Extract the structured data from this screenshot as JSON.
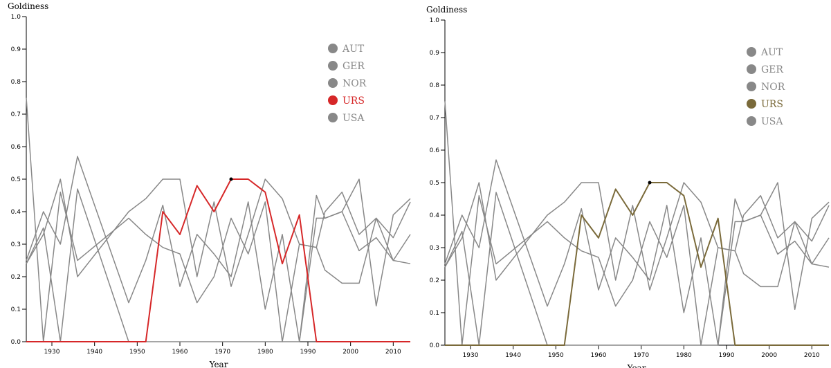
{
  "chart_data": [
    {
      "type": "line",
      "title": "",
      "ylabel": "Goldiness",
      "xlabel": "Year",
      "xlim": [
        1924,
        2014
      ],
      "ylim": [
        0,
        1
      ],
      "grid": false,
      "legend_position": "top-right",
      "x_ticks": [
        1930,
        1940,
        1950,
        1960,
        1970,
        1980,
        1990,
        2000,
        2010
      ],
      "y_ticks": [
        0.0,
        0.1,
        0.2,
        0.3,
        0.4,
        0.5,
        0.6,
        0.7,
        0.8,
        0.9,
        1.0
      ],
      "x_tick_labels": [
        "1930",
        "1940",
        "1950",
        "1960",
        "1970",
        "1980",
        "1990",
        "2000",
        "2010"
      ],
      "y_tick_labels": [
        "0.0",
        "0.1",
        "0.2",
        "0.3",
        "0.4",
        "0.5",
        "0.6",
        "0.7",
        "0.8",
        "0.9",
        "1.0"
      ],
      "highlight_marker": {
        "x": 1972,
        "y": 0.5
      },
      "series": [
        {
          "name": "AUT",
          "color": "#888888",
          "highlighted": false,
          "x": [
            1924,
            1928,
            1932,
            1936,
            1948,
            1952,
            1956,
            1960,
            1964,
            1968,
            1972,
            1976,
            1980,
            1984,
            1988,
            1992,
            1994,
            1998,
            2002,
            2006,
            2010,
            2014
          ],
          "y": [
            0.25,
            0.4,
            0.3,
            0.57,
            0.12,
            0.25,
            0.42,
            0.17,
            0.33,
            0.27,
            0.2,
            0.43,
            0.1,
            0.33,
            0.0,
            0.45,
            0.38,
            0.4,
            0.28,
            0.32,
            0.25,
            0.24
          ]
        },
        {
          "name": "GER",
          "color": "#888888",
          "highlighted": false,
          "x": [
            1924,
            1928,
            1932,
            1936,
            1948,
            1952,
            1956,
            1960,
            1964,
            1968,
            1972,
            1976,
            1980,
            1984,
            1988,
            1992,
            1994,
            1998,
            2002,
            2006,
            2010,
            2014
          ],
          "y": [
            0.75,
            0.0,
            0.46,
            0.25,
            0.38,
            0.33,
            0.29,
            0.27,
            0.12,
            0.2,
            0.38,
            0.27,
            0.43,
            0.0,
            0.3,
            0.29,
            0.22,
            0.18,
            0.18,
            0.38,
            0.32,
            0.43
          ]
        },
        {
          "name": "NOR",
          "color": "#888888",
          "highlighted": false,
          "x": [
            1924,
            1928,
            1932,
            1936,
            1948,
            1952,
            1956,
            1960,
            1964,
            1968,
            1972,
            1976,
            1980,
            1984,
            1988,
            1992,
            1994,
            1998,
            2002,
            2006,
            2010,
            2014
          ],
          "y": [
            0.24,
            0.33,
            0.5,
            0.2,
            0.4,
            0.44,
            0.5,
            0.5,
            0.2,
            0.43,
            0.17,
            0.33,
            0.5,
            0.44,
            0.3,
            0.29,
            0.4,
            0.46,
            0.33,
            0.38,
            0.25,
            0.33
          ]
        },
        {
          "name": "URS",
          "color": "#d62728",
          "highlighted": true,
          "x": [
            1924,
            1928,
            1932,
            1936,
            1948,
            1952,
            1956,
            1960,
            1964,
            1968,
            1972,
            1976,
            1980,
            1984,
            1988,
            1992,
            1994,
            1998,
            2002,
            2006,
            2010,
            2014
          ],
          "y": [
            0,
            0,
            0,
            0,
            0,
            0,
            0.4,
            0.33,
            0.48,
            0.4,
            0.5,
            0.5,
            0.46,
            0.24,
            0.39,
            0,
            0,
            0,
            0,
            0,
            0,
            0
          ]
        },
        {
          "name": "USA",
          "color": "#888888",
          "highlighted": false,
          "x": [
            1924,
            1928,
            1932,
            1936,
            1948,
            1952,
            1956,
            1960,
            1964,
            1968,
            1972,
            1976,
            1980,
            1984,
            1988,
            1992,
            1994,
            1998,
            2002,
            2006,
            2010,
            2014
          ],
          "y": [
            0.24,
            0.35,
            0.0,
            0.47,
            0.0,
            0.0,
            0.0,
            0.0,
            0.0,
            0.0,
            0.0,
            0.0,
            0.0,
            0.0,
            0.0,
            0.38,
            0.38,
            0.4,
            0.5,
            0.11,
            0.39,
            0.44
          ]
        }
      ]
    },
    {
      "type": "line",
      "title": "",
      "ylabel": "Goldiness",
      "xlabel": "Year",
      "xlim": [
        1924,
        2014
      ],
      "ylim": [
        0,
        1
      ],
      "grid": false,
      "legend_position": "top-right",
      "x_ticks": [
        1930,
        1940,
        1950,
        1960,
        1970,
        1980,
        1990,
        2000,
        2010
      ],
      "y_ticks": [
        0.0,
        0.1,
        0.2,
        0.3,
        0.4,
        0.5,
        0.6,
        0.7,
        0.8,
        0.9,
        1.0
      ],
      "x_tick_labels": [
        "1930",
        "1940",
        "1950",
        "1960",
        "1970",
        "1980",
        "1990",
        "2000",
        "2010"
      ],
      "y_tick_labels": [
        "0.0",
        "0.1",
        "0.2",
        "0.3",
        "0.4",
        "0.5",
        "0.6",
        "0.7",
        "0.8",
        "0.9",
        "1.0"
      ],
      "highlight_marker": {
        "x": 1972,
        "y": 0.5
      },
      "series": [
        {
          "name": "AUT",
          "color": "#888888",
          "highlighted": false,
          "x": [
            1924,
            1928,
            1932,
            1936,
            1948,
            1952,
            1956,
            1960,
            1964,
            1968,
            1972,
            1976,
            1980,
            1984,
            1988,
            1992,
            1994,
            1998,
            2002,
            2006,
            2010,
            2014
          ],
          "y": [
            0.25,
            0.4,
            0.3,
            0.57,
            0.12,
            0.25,
            0.42,
            0.17,
            0.33,
            0.27,
            0.2,
            0.43,
            0.1,
            0.33,
            0.0,
            0.45,
            0.38,
            0.4,
            0.28,
            0.32,
            0.25,
            0.24
          ]
        },
        {
          "name": "GER",
          "color": "#888888",
          "highlighted": false,
          "x": [
            1924,
            1928,
            1932,
            1936,
            1948,
            1952,
            1956,
            1960,
            1964,
            1968,
            1972,
            1976,
            1980,
            1984,
            1988,
            1992,
            1994,
            1998,
            2002,
            2006,
            2010,
            2014
          ],
          "y": [
            0.75,
            0.0,
            0.46,
            0.25,
            0.38,
            0.33,
            0.29,
            0.27,
            0.12,
            0.2,
            0.38,
            0.27,
            0.43,
            0.0,
            0.3,
            0.29,
            0.22,
            0.18,
            0.18,
            0.38,
            0.32,
            0.43
          ]
        },
        {
          "name": "NOR",
          "color": "#888888",
          "highlighted": false,
          "x": [
            1924,
            1928,
            1932,
            1936,
            1948,
            1952,
            1956,
            1960,
            1964,
            1968,
            1972,
            1976,
            1980,
            1984,
            1988,
            1992,
            1994,
            1998,
            2002,
            2006,
            2010,
            2014
          ],
          "y": [
            0.24,
            0.33,
            0.5,
            0.2,
            0.4,
            0.44,
            0.5,
            0.5,
            0.2,
            0.43,
            0.17,
            0.33,
            0.5,
            0.44,
            0.3,
            0.29,
            0.4,
            0.46,
            0.33,
            0.38,
            0.25,
            0.33
          ]
        },
        {
          "name": "URS",
          "color": "#7a6a3a",
          "highlighted": true,
          "x": [
            1924,
            1928,
            1932,
            1936,
            1948,
            1952,
            1956,
            1960,
            1964,
            1968,
            1972,
            1976,
            1980,
            1984,
            1988,
            1992,
            1994,
            1998,
            2002,
            2006,
            2010,
            2014
          ],
          "y": [
            0,
            0,
            0,
            0,
            0,
            0,
            0.4,
            0.33,
            0.48,
            0.4,
            0.5,
            0.5,
            0.46,
            0.24,
            0.39,
            0,
            0,
            0,
            0,
            0,
            0,
            0
          ]
        },
        {
          "name": "USA",
          "color": "#888888",
          "highlighted": false,
          "x": [
            1924,
            1928,
            1932,
            1936,
            1948,
            1952,
            1956,
            1960,
            1964,
            1968,
            1972,
            1976,
            1980,
            1984,
            1988,
            1992,
            1994,
            1998,
            2002,
            2006,
            2010,
            2014
          ],
          "y": [
            0.24,
            0.35,
            0.0,
            0.47,
            0.0,
            0.0,
            0.0,
            0.0,
            0.0,
            0.0,
            0.0,
            0.0,
            0.0,
            0.0,
            0.0,
            0.38,
            0.38,
            0.4,
            0.5,
            0.11,
            0.39,
            0.44
          ]
        }
      ]
    }
  ]
}
